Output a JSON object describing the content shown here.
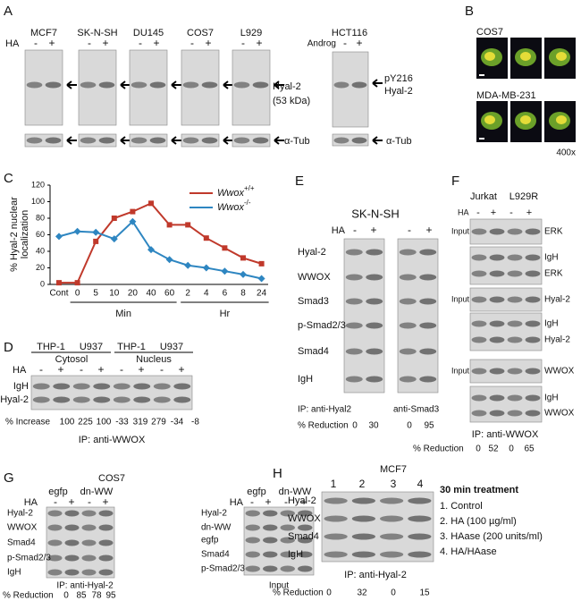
{
  "A": {
    "label": "A",
    "treatment": "HA",
    "signs": [
      "-",
      "+"
    ],
    "lines": [
      "MCF7",
      "SK-N-SH",
      "DU145",
      "COS7",
      "L929"
    ],
    "band": "Hyal-2",
    "size": "(53 kDa)",
    "loading": "α-Tub",
    "hct": {
      "line": "HCT116",
      "treatment": "Androg",
      "bands": [
        "pY216",
        "Hyal-2"
      ],
      "loading": "α-Tub"
    }
  },
  "B": {
    "label": "B",
    "rows": [
      "COS7",
      "MDA-MB-231"
    ],
    "magnification": "400x"
  },
  "C": {
    "label": "C",
    "chart": {
      "type": "line",
      "y_label": [
        "% Hyal-2 nuclear",
        "localization"
      ],
      "categories": [
        "Cont",
        "0",
        "5",
        "10",
        "20",
        "40",
        "60",
        "2",
        "4",
        "6",
        "8",
        "24"
      ],
      "groups": [
        "Min",
        "Hr"
      ],
      "ylim": [
        0,
        120
      ],
      "yticks": [
        0,
        20,
        40,
        60,
        80,
        100,
        120
      ],
      "series": [
        {
          "name": "Wwox",
          "superscript": "+/+",
          "color": "#c0392b",
          "values": [
            2,
            2,
            52,
            80,
            88,
            98,
            72,
            72,
            56,
            44,
            32,
            25
          ]
        },
        {
          "name": "Wwox",
          "superscript": "-/-",
          "color": "#2e86c1",
          "values": [
            58,
            64,
            63,
            55,
            76,
            42,
            30,
            23,
            20,
            16,
            12,
            7
          ]
        }
      ]
    }
  },
  "D": {
    "label": "D",
    "cells": [
      "THP-1",
      "U937",
      "THP-1",
      "U937"
    ],
    "fractions": [
      "Cytosol",
      "Nucleus"
    ],
    "treatment": "HA",
    "signs": [
      "-",
      "+"
    ],
    "bands": [
      "IgH",
      "Hyal-2"
    ],
    "metric": "% Increase",
    "values": [
      100,
      225,
      100,
      -33,
      319,
      279,
      -34,
      -8
    ],
    "ip": "IP: anti-WWOX"
  },
  "E": {
    "label": "E",
    "cell": "SK-N-SH",
    "treatment": "HA",
    "signs": [
      "-",
      "+"
    ],
    "bands": [
      "Hyal-2",
      "WWOX",
      "Smad3",
      "p-Smad2/3",
      "Smad4",
      "IgH"
    ],
    "ip": [
      "IP: anti-Hyal2",
      "anti-Smad3"
    ],
    "metric": "% Reduction",
    "values": [
      0,
      30,
      0,
      95
    ]
  },
  "F": {
    "label": "F",
    "cells": [
      "Jurkat",
      "L929R"
    ],
    "treatment": "HA",
    "signs": [
      "-",
      "+"
    ],
    "blocks": [
      {
        "input": "Input",
        "bands": [
          "ERK",
          "IgH",
          "ERK"
        ]
      },
      {
        "input": "Input",
        "bands": [
          "Hyal-2",
          "IgH",
          "Hyal-2"
        ]
      },
      {
        "input": "Input",
        "bands": [
          "WWOX",
          "IgH",
          "WWOX"
        ]
      }
    ],
    "ip": "IP: anti-WWOX",
    "metric": "% Reduction",
    "values": [
      0,
      52,
      0,
      65
    ]
  },
  "G": {
    "label": "G",
    "cell": "COS7",
    "constructs": [
      "egfp",
      "dn-WW"
    ],
    "treatment": "HA",
    "signs": [
      "-",
      "+"
    ],
    "ip_bands": [
      "Hyal-2",
      "WWOX",
      "Smad4",
      "p-Smad2/3",
      "IgH"
    ],
    "ip": "IP: anti-Hyal-2",
    "metric": "% Reduction",
    "values": [
      0,
      85,
      78,
      95
    ],
    "input_bands": [
      "Hyal-2",
      "dn-WW",
      "egfp",
      "Smad4",
      "p-Smad2/3"
    ],
    "input": "Input"
  },
  "H": {
    "label": "H",
    "cell": "MCF7",
    "lanes": [
      "1",
      "2",
      "3",
      "4"
    ],
    "bands": [
      "Hyal-2",
      "WWOX",
      "Smad4",
      "IgH"
    ],
    "ip": "IP: anti-Hyal-2",
    "metric": "% Reduction",
    "values": [
      0,
      32,
      0,
      15
    ],
    "legend_title": "30 min treatment",
    "legend": [
      "1. Control",
      "2. HA (100 µg/ml)",
      "3. HAase (200 units/ml)",
      "4. HA/HAase"
    ]
  }
}
